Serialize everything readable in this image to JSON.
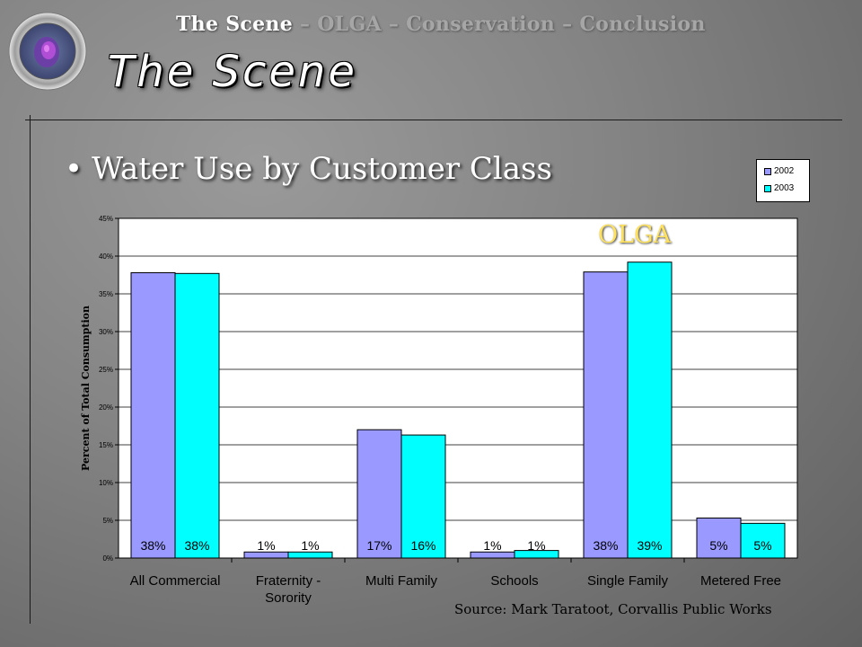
{
  "nav": {
    "current": "The Scene",
    "rest": " – OLGA  –  Conservation  –  Conclusion"
  },
  "slide_title": "The Scene",
  "bullet": "Water Use by Customer Class",
  "annotation": "OLGA",
  "source": "Source: Mark Taratoot, Corvallis Public Works",
  "colors": {
    "series_2002": "#9999ff",
    "series_2003": "#00ffff",
    "annotation": "#ffe15a"
  },
  "chart_data": {
    "type": "bar",
    "categories": [
      [
        "All Commercial"
      ],
      [
        "Fraternity -",
        "Sorority"
      ],
      [
        "Multi Family"
      ],
      [
        "Schools"
      ],
      [
        "Single Family"
      ],
      [
        "Metered Free"
      ]
    ],
    "series": [
      {
        "name": "2002",
        "color": "#9999ff",
        "values": [
          37.8,
          0.8,
          17.0,
          0.8,
          37.9,
          5.3
        ],
        "labels": [
          "38%",
          "1%",
          "17%",
          "1%",
          "38%",
          "5%"
        ]
      },
      {
        "name": "2003",
        "color": "#00ffff",
        "values": [
          37.7,
          0.8,
          16.3,
          1.0,
          39.2,
          4.6
        ],
        "labels": [
          "38%",
          "1%",
          "16%",
          "1%",
          "39%",
          "5%"
        ]
      }
    ],
    "ylabel": "Percent of Total Consumption",
    "ylim": [
      0,
      45
    ],
    "yticks": [
      "0%",
      "5%",
      "10%",
      "15%",
      "20%",
      "25%",
      "30%",
      "35%",
      "40%",
      "45%"
    ],
    "grid": true,
    "legend_position": "top-right"
  }
}
